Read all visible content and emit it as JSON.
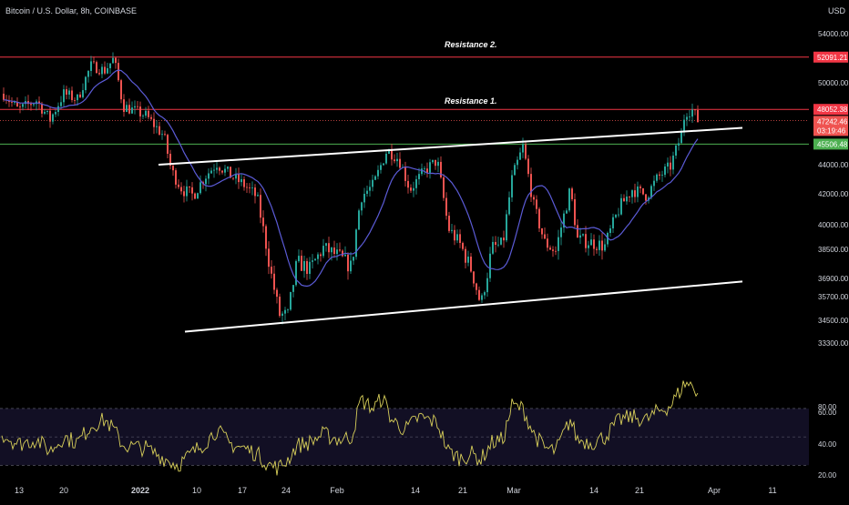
{
  "header": {
    "symbol_title": "Bitcoin / U.S. Dollar, 8h, COINBASE",
    "currency": "USD"
  },
  "chart_data": {
    "type": "candlestick",
    "price_axis": {
      "ticks": [
        54000,
        52091.21,
        50000,
        48052.38,
        47242.46,
        45506.48,
        44000,
        42000,
        40000,
        38500,
        36900,
        35700,
        34500,
        33300
      ],
      "range": [
        32500,
        55600
      ]
    },
    "rsi_axis": {
      "ticks": [
        80,
        60,
        40,
        20
      ],
      "range": [
        18,
        95
      ],
      "band": [
        30,
        70
      ],
      "mid": 50
    },
    "time_axis": {
      "labels": [
        "13",
        "20",
        "2022",
        "10",
        "17",
        "24",
        "Feb",
        "14",
        "21",
        "Mar",
        "14",
        "21",
        "Apr",
        "11"
      ]
    },
    "annotations": [
      "Resistance 2.",
      "Resistance 1."
    ],
    "price_labels": {
      "resistance_2": "52091.21",
      "resistance_1": "48052.38",
      "last_price": "47242.46",
      "countdown": "03:19:46",
      "support": "45506.48"
    },
    "horizontal_levels": [
      {
        "price": 52091.21,
        "color": "#f23645"
      },
      {
        "price": 48052.38,
        "color": "#f23645"
      },
      {
        "price": 45506.48,
        "color": "#4caf50"
      }
    ],
    "channel_lines": [
      {
        "from": [
          174,
          44000
        ],
        "to": [
          815,
          46700
        ]
      },
      {
        "from": [
          203,
          33900
        ],
        "to": [
          815,
          36700
        ]
      }
    ],
    "colors": {
      "up": "#26a69a",
      "down": "#ef5350",
      "ma": "#5b5bd6",
      "rsi": "#d8cf5a",
      "resistance": "#f23645",
      "support": "#4caf50"
    }
  }
}
